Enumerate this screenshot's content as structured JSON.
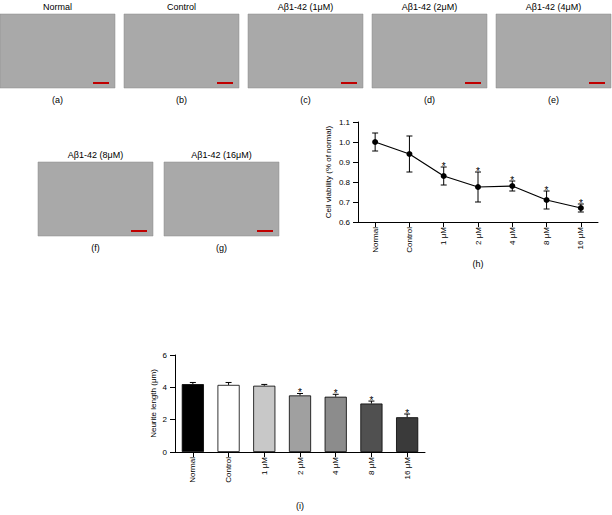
{
  "images": [
    {
      "title": "Normal",
      "label": "(a)"
    },
    {
      "title": "Control",
      "label": "(b)"
    },
    {
      "title": "Aβ1-42 (1μM)",
      "label": "(c)"
    },
    {
      "title": "Aβ1-42 (2μM)",
      "label": "(d)"
    },
    {
      "title": "Aβ1-42 (4μM)",
      "label": "(e)"
    },
    {
      "title": "Aβ1-42 (8μM)",
      "label": "(f)"
    },
    {
      "title": "Aβ1-42 (16μM)",
      "label": "(g)"
    }
  ],
  "chart_data": [
    {
      "type": "line",
      "caption": "(h)",
      "y_label": "Cell viability (% of normal)",
      "categories": [
        "Normal",
        "Control",
        "1 μM",
        "2 μM",
        "4 μM",
        "8 μM",
        "16 μM"
      ],
      "values": [
        1.0,
        0.94,
        0.83,
        0.775,
        0.78,
        0.71,
        0.67
      ],
      "errors": [
        0.045,
        0.09,
        0.045,
        0.075,
        0.025,
        0.045,
        0.02
      ],
      "significance": [
        null,
        null,
        "*",
        "*",
        "*",
        "*",
        "*"
      ],
      "color": "#000000",
      "marker": "circle",
      "ylim": [
        0.6,
        1.1
      ],
      "yticks": [
        0.6,
        0.7,
        0.8,
        0.9,
        {
          "value": 1,
          "label": "1.0"
        },
        1.1
      ]
    },
    {
      "type": "bar",
      "caption": "(i)",
      "y_label": "Neurite length (μm)",
      "categories": [
        "Normal",
        "Control",
        "1 μM",
        "2 μM",
        "4 μM",
        "8 μM",
        "16 μM"
      ],
      "values": [
        4.2,
        4.15,
        4.1,
        3.5,
        3.42,
        3.0,
        2.15
      ],
      "errors": [
        0.1,
        0.15,
        0.08,
        0.12,
        0.15,
        0.15,
        0.2
      ],
      "significance": [
        null,
        null,
        null,
        "*",
        "*",
        "*",
        "*"
      ],
      "colors": [
        "#000000",
        "#ffffff",
        "#c8c8c8",
        "#a0a0a0",
        "#8c8c8c",
        "#505050",
        "#3a3a3a"
      ],
      "ylim": [
        0,
        6
      ],
      "yticks": [
        0,
        2,
        4,
        6
      ]
    }
  ]
}
